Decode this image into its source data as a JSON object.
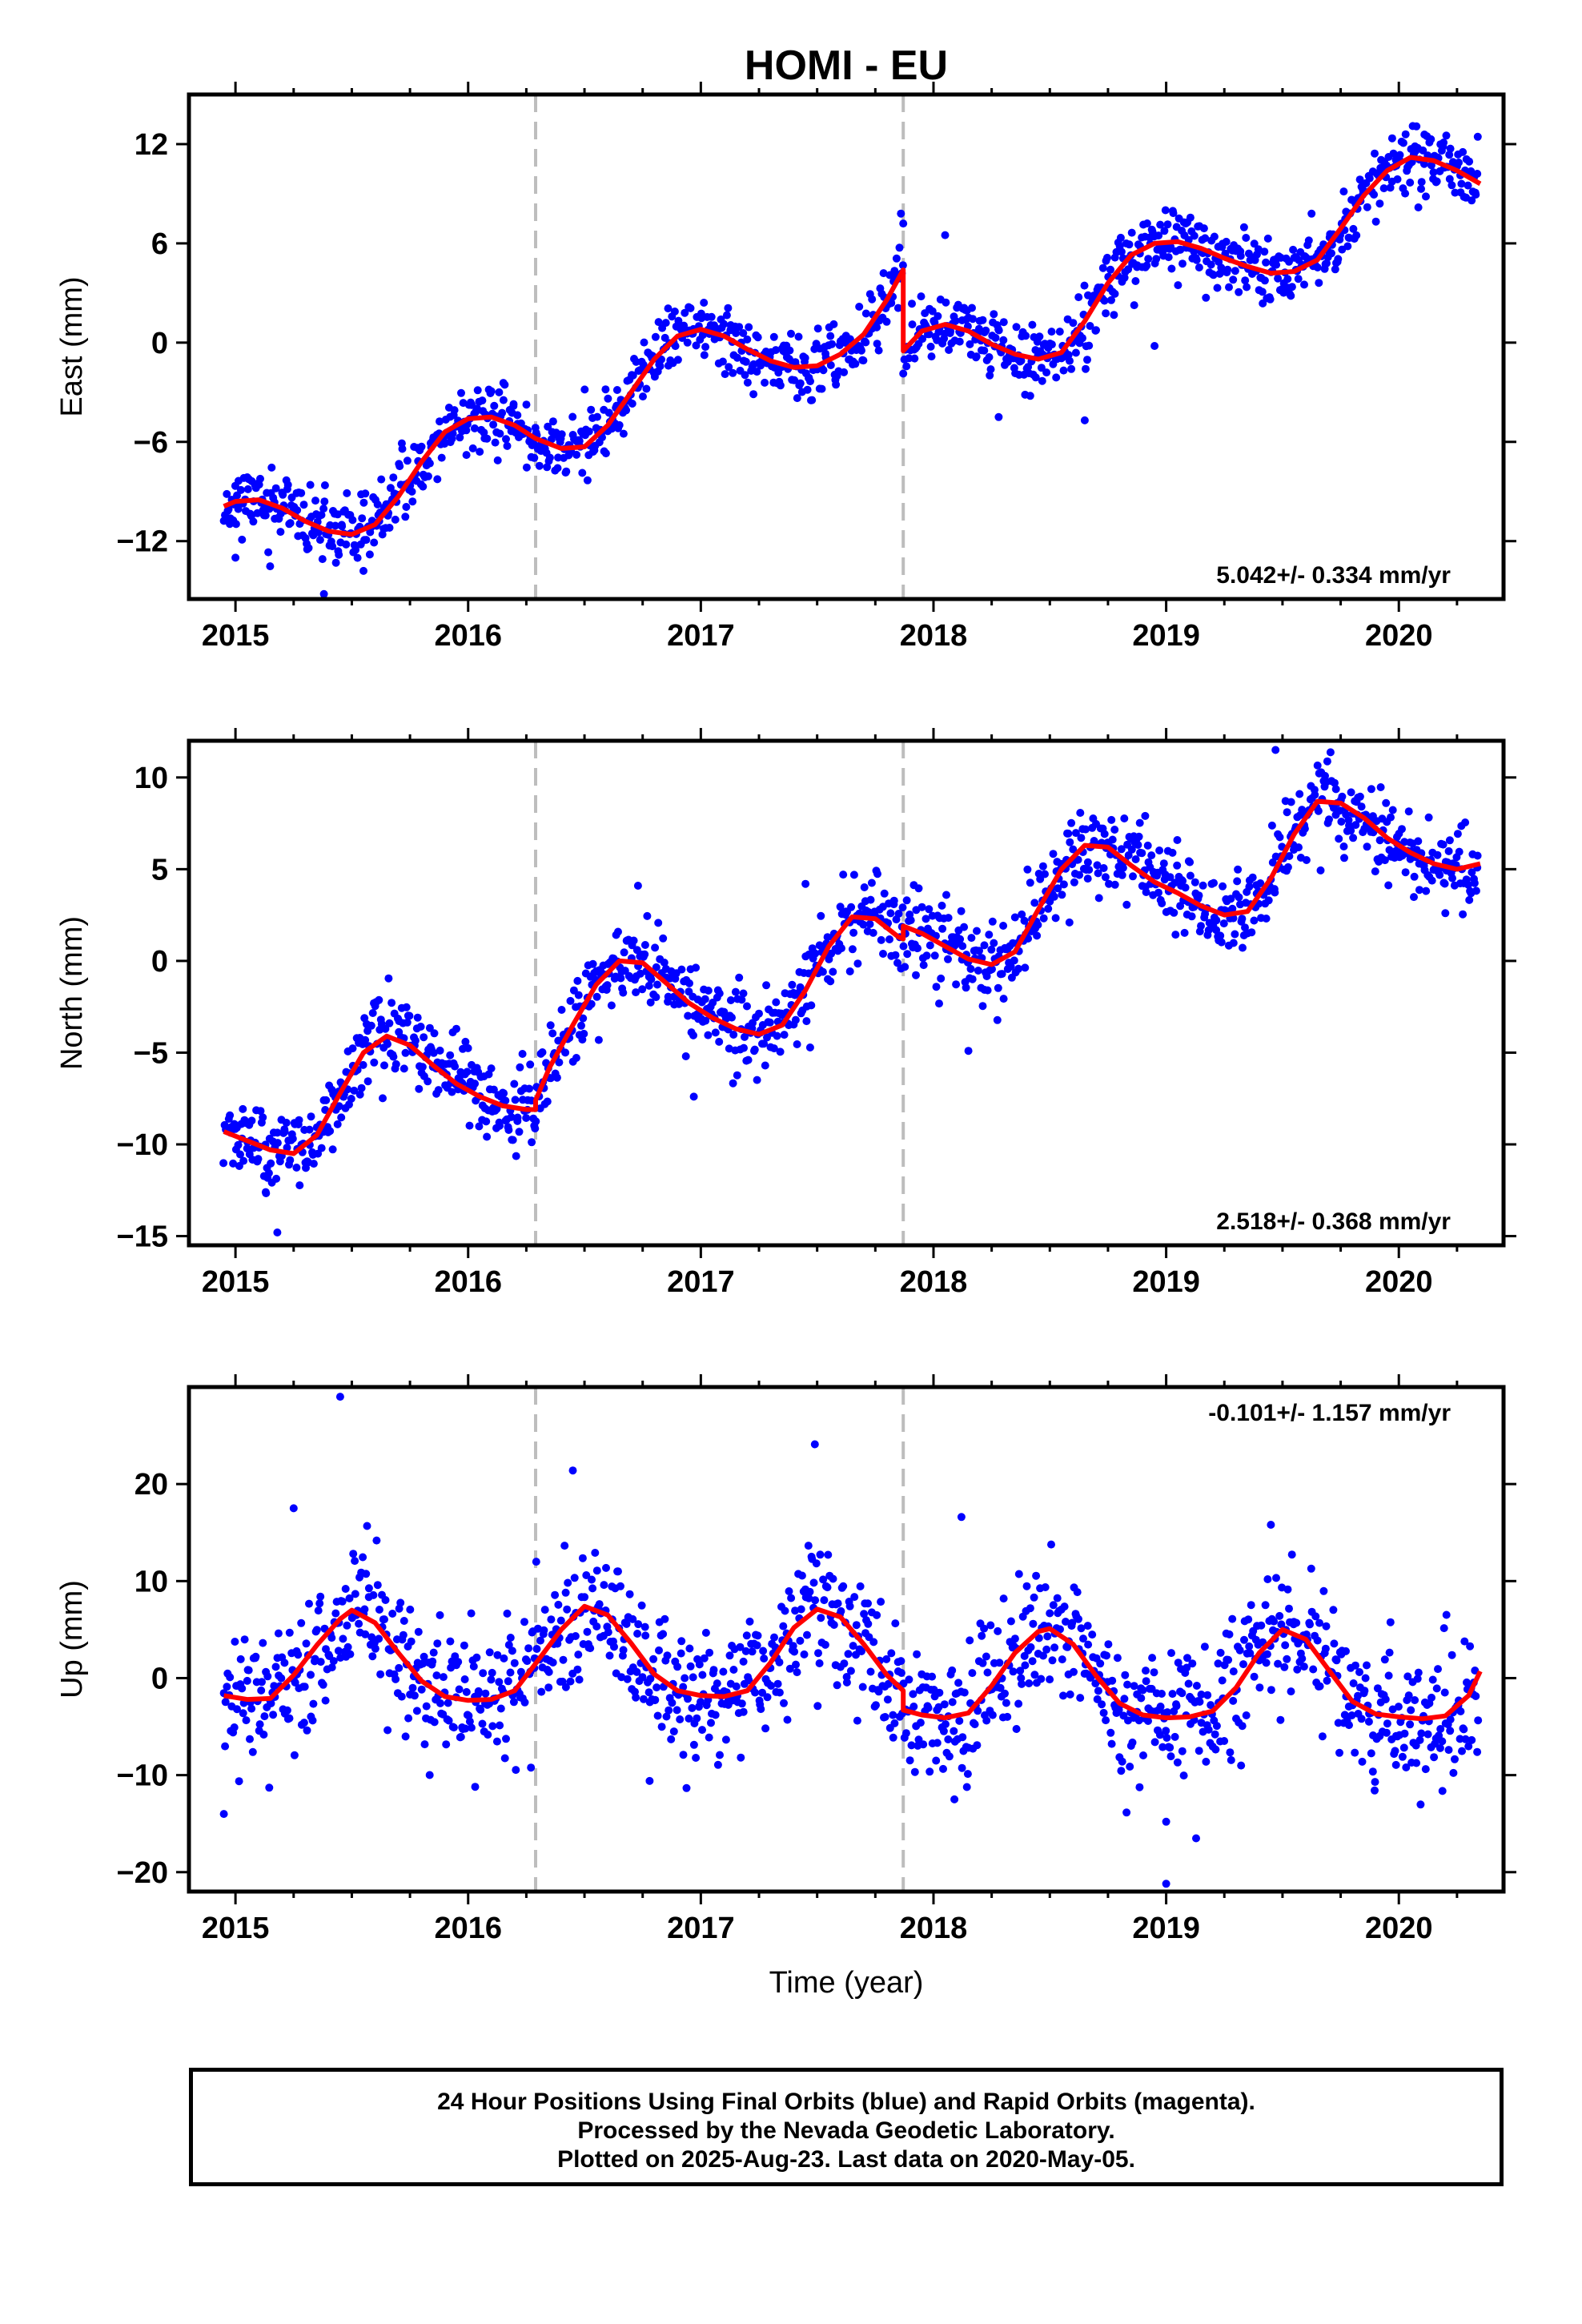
{
  "title": "HOMI - EU",
  "colors": {
    "data": "#0000ff",
    "model": "#ff0000",
    "event_line": "#bdbdbd",
    "frame": "#000000"
  },
  "chart_data": [
    {
      "type": "scatter",
      "component": "East",
      "ylabel": "East (mm)",
      "xlim": [
        2014.8,
        2020.45
      ],
      "ylim": [
        -15.5,
        15
      ],
      "yticks": [
        -12,
        -6,
        0,
        6,
        12
      ],
      "ytick_labels": [
        "−12",
        "−6",
        "0",
        "6",
        "12"
      ],
      "xticks": [
        2015,
        2016,
        2017,
        2018,
        2019,
        2020
      ],
      "xtick_labels": [
        "2015",
        "2016",
        "2017",
        "2018",
        "2019",
        "2020"
      ],
      "rate": "5.042+/- 0.334 mm/yr",
      "rate_position": "bottom-right",
      "event_lines_x": [
        2016.29,
        2017.87
      ],
      "model": {
        "color": "#ff0000",
        "x": [
          2014.95,
          2015.0,
          2015.1,
          2015.2,
          2015.3,
          2015.4,
          2015.5,
          2015.6,
          2015.7,
          2015.8,
          2015.9,
          2016.0,
          2016.1,
          2016.2,
          2016.29,
          2016.4,
          2016.5,
          2016.6,
          2016.7,
          2016.8,
          2016.9,
          2017.0,
          2017.1,
          2017.2,
          2017.3,
          2017.4,
          2017.5,
          2017.6,
          2017.7,
          2017.8,
          2017.87,
          2017.87,
          2017.95,
          2018.05,
          2018.15,
          2018.25,
          2018.35,
          2018.45,
          2018.55,
          2018.65,
          2018.75,
          2018.85,
          2018.95,
          2019.05,
          2019.15,
          2019.25,
          2019.35,
          2019.45,
          2019.55,
          2019.65,
          2019.75,
          2019.85,
          2019.95,
          2020.05,
          2020.15,
          2020.25,
          2020.35
        ],
        "y": [
          -9.9,
          -9.6,
          -9.5,
          -10.0,
          -10.8,
          -11.4,
          -11.6,
          -11.0,
          -9.3,
          -7.2,
          -5.4,
          -4.6,
          -4.5,
          -5.0,
          -5.8,
          -6.4,
          -6.3,
          -5.0,
          -3.0,
          -1.0,
          0.4,
          0.8,
          0.4,
          -0.4,
          -1.1,
          -1.5,
          -1.4,
          -0.7,
          0.5,
          2.6,
          4.4,
          -0.5,
          0.7,
          1.1,
          0.7,
          -0.1,
          -0.7,
          -1.0,
          -0.6,
          1.3,
          3.6,
          5.3,
          6.0,
          6.1,
          5.7,
          5.1,
          4.6,
          4.2,
          4.3,
          5.0,
          6.9,
          8.9,
          10.4,
          11.2,
          11.0,
          10.4,
          9.6
        ]
      },
      "points": {
        "color": "#0000ff",
        "count": 1250,
        "seed": 11,
        "scatter_mm": 1.0,
        "outliers": [
          [
            2015.38,
            -15.2
          ],
          [
            2017.86,
            7.8
          ],
          [
            2017.87,
            7.2
          ],
          [
            2015.0,
            -13.0
          ],
          [
            2018.28,
            -4.5
          ],
          [
            2018.65,
            -4.7
          ],
          [
            2018.95,
            -0.2
          ],
          [
            2015.55,
            -13.8
          ],
          [
            2018.05,
            6.5
          ]
        ]
      }
    },
    {
      "type": "scatter",
      "component": "North",
      "ylabel": "North (mm)",
      "xlim": [
        2014.8,
        2020.45
      ],
      "ylim": [
        -15.5,
        12
      ],
      "yticks": [
        -15,
        -10,
        -5,
        0,
        5,
        10
      ],
      "ytick_labels": [
        "−15",
        "−10",
        "−5",
        "0",
        "5",
        "10"
      ],
      "xticks": [
        2015,
        2016,
        2017,
        2018,
        2019,
        2020
      ],
      "xtick_labels": [
        "2015",
        "2016",
        "2017",
        "2018",
        "2019",
        "2020"
      ],
      "rate": "2.518+/- 0.368 mm/yr",
      "rate_position": "bottom-right",
      "event_lines_x": [
        2016.29,
        2017.87
      ],
      "model": {
        "color": "#ff0000",
        "x": [
          2014.95,
          2015.05,
          2015.15,
          2015.25,
          2015.35,
          2015.45,
          2015.55,
          2015.65,
          2015.75,
          2015.85,
          2015.95,
          2016.05,
          2016.15,
          2016.25,
          2016.29,
          2016.29,
          2016.35,
          2016.45,
          2016.55,
          2016.65,
          2016.75,
          2016.85,
          2016.95,
          2017.05,
          2017.15,
          2017.25,
          2017.35,
          2017.45,
          2017.55,
          2017.65,
          2017.75,
          2017.85,
          2017.87,
          2017.87,
          2017.95,
          2018.05,
          2018.15,
          2018.25,
          2018.35,
          2018.45,
          2018.55,
          2018.65,
          2018.75,
          2018.85,
          2018.95,
          2019.05,
          2019.15,
          2019.25,
          2019.35,
          2019.45,
          2019.55,
          2019.65,
          2019.75,
          2019.85,
          2019.95,
          2020.05,
          2020.15,
          2020.25,
          2020.35
        ],
        "y": [
          -9.3,
          -9.8,
          -10.3,
          -10.5,
          -9.5,
          -7.2,
          -5.0,
          -4.1,
          -4.6,
          -5.7,
          -6.7,
          -7.4,
          -7.9,
          -8.1,
          -8.1,
          -7.6,
          -5.8,
          -3.5,
          -1.3,
          0.0,
          -0.1,
          -1.2,
          -2.3,
          -3.1,
          -3.7,
          -4.0,
          -3.5,
          -1.6,
          0.8,
          2.4,
          2.3,
          1.3,
          1.2,
          1.9,
          1.5,
          0.8,
          0.1,
          -0.2,
          0.5,
          2.8,
          5.0,
          6.3,
          6.2,
          5.2,
          4.3,
          3.7,
          3.0,
          2.5,
          2.7,
          4.5,
          6.9,
          8.7,
          8.6,
          7.8,
          6.7,
          5.9,
          5.3,
          5.0,
          5.3
        ]
      },
      "points": {
        "color": "#0000ff",
        "count": 1250,
        "seed": 23,
        "scatter_mm": 1.1,
        "outliers": [
          [
            2015.18,
            -14.8
          ],
          [
            2016.73,
            4.1
          ],
          [
            2017.45,
            4.2
          ],
          [
            2019.47,
            11.5
          ],
          [
            2016.97,
            -7.4
          ],
          [
            2018.15,
            -4.9
          ],
          [
            2018.91,
            7.9
          ],
          [
            2015.13,
            -12.6
          ],
          [
            2020.2,
            2.6
          ]
        ]
      }
    },
    {
      "type": "scatter",
      "component": "Up",
      "ylabel": "Up (mm)",
      "xlabel": "Time (year)",
      "xlim": [
        2014.8,
        2020.45
      ],
      "ylim": [
        -22,
        30
      ],
      "yticks": [
        -20,
        -10,
        0,
        10,
        20
      ],
      "ytick_labels": [
        "−20",
        "−10",
        "0",
        "10",
        "20"
      ],
      "xticks": [
        2015,
        2016,
        2017,
        2018,
        2019,
        2020
      ],
      "xtick_labels": [
        "2015",
        "2016",
        "2017",
        "2018",
        "2019",
        "2020"
      ],
      "rate": "-0.101+/- 1.157 mm/yr",
      "rate_position": "top-right",
      "event_lines_x": [
        2016.29,
        2017.87
      ],
      "model": {
        "color": "#ff0000",
        "x": [
          2014.95,
          2015.05,
          2015.15,
          2015.25,
          2015.35,
          2015.45,
          2015.5,
          2015.6,
          2015.7,
          2015.8,
          2015.9,
          2016.0,
          2016.1,
          2016.2,
          2016.29,
          2016.4,
          2016.5,
          2016.6,
          2016.7,
          2016.8,
          2016.9,
          2017.0,
          2017.1,
          2017.2,
          2017.3,
          2017.4,
          2017.5,
          2017.6,
          2017.7,
          2017.8,
          2017.87,
          2017.87,
          2017.95,
          2018.05,
          2018.15,
          2018.25,
          2018.35,
          2018.45,
          2018.5,
          2018.6,
          2018.7,
          2018.8,
          2018.9,
          2019.0,
          2019.1,
          2019.2,
          2019.3,
          2019.4,
          2019.5,
          2019.6,
          2019.7,
          2019.8,
          2019.9,
          2020.0,
          2020.1,
          2020.2,
          2020.3,
          2020.35
        ],
        "y": [
          -1.8,
          -2.2,
          -2.1,
          0.3,
          3.4,
          6.1,
          7.0,
          5.7,
          2.6,
          -0.3,
          -1.9,
          -2.3,
          -2.2,
          -1.3,
          1.5,
          5.0,
          7.4,
          6.5,
          3.6,
          0.4,
          -1.3,
          -1.8,
          -1.9,
          -1.3,
          1.6,
          5.2,
          7.1,
          6.3,
          3.5,
          0.3,
          -1.3,
          -3.3,
          -3.8,
          -4.1,
          -3.6,
          -0.8,
          2.6,
          4.8,
          5.1,
          3.5,
          0.2,
          -2.6,
          -3.8,
          -4.1,
          -4.0,
          -3.4,
          -1.0,
          2.6,
          5.0,
          4.0,
          0.8,
          -2.4,
          -3.7,
          -4.0,
          -4.2,
          -3.9,
          -1.8,
          0.7
        ]
      },
      "points": {
        "color": "#0000ff",
        "count": 1250,
        "seed": 37,
        "scatter_mm": 3.4,
        "outliers": [
          [
            2015.45,
            29.0
          ],
          [
            2016.45,
            21.4
          ],
          [
            2017.49,
            24.1
          ],
          [
            2019.0,
            -21.2
          ],
          [
            2014.95,
            -14.0
          ],
          [
            2019.45,
            15.8
          ],
          [
            2018.12,
            16.6
          ],
          [
            2015.25,
            17.5
          ],
          [
            2016.03,
            -11.2
          ],
          [
            2019.0,
            -14.8
          ],
          [
            2018.09,
            -12.5
          ],
          [
            2016.78,
            -10.6
          ]
        ]
      }
    }
  ],
  "caption": {
    "line1": "24 Hour Positions Using Final Orbits (blue) and Rapid Orbits (magenta).",
    "line2": "Processed by the Nevada Geodetic Laboratory.",
    "line3": "Plotted on 2025-Aug-23. Last data on 2020-May-05."
  }
}
